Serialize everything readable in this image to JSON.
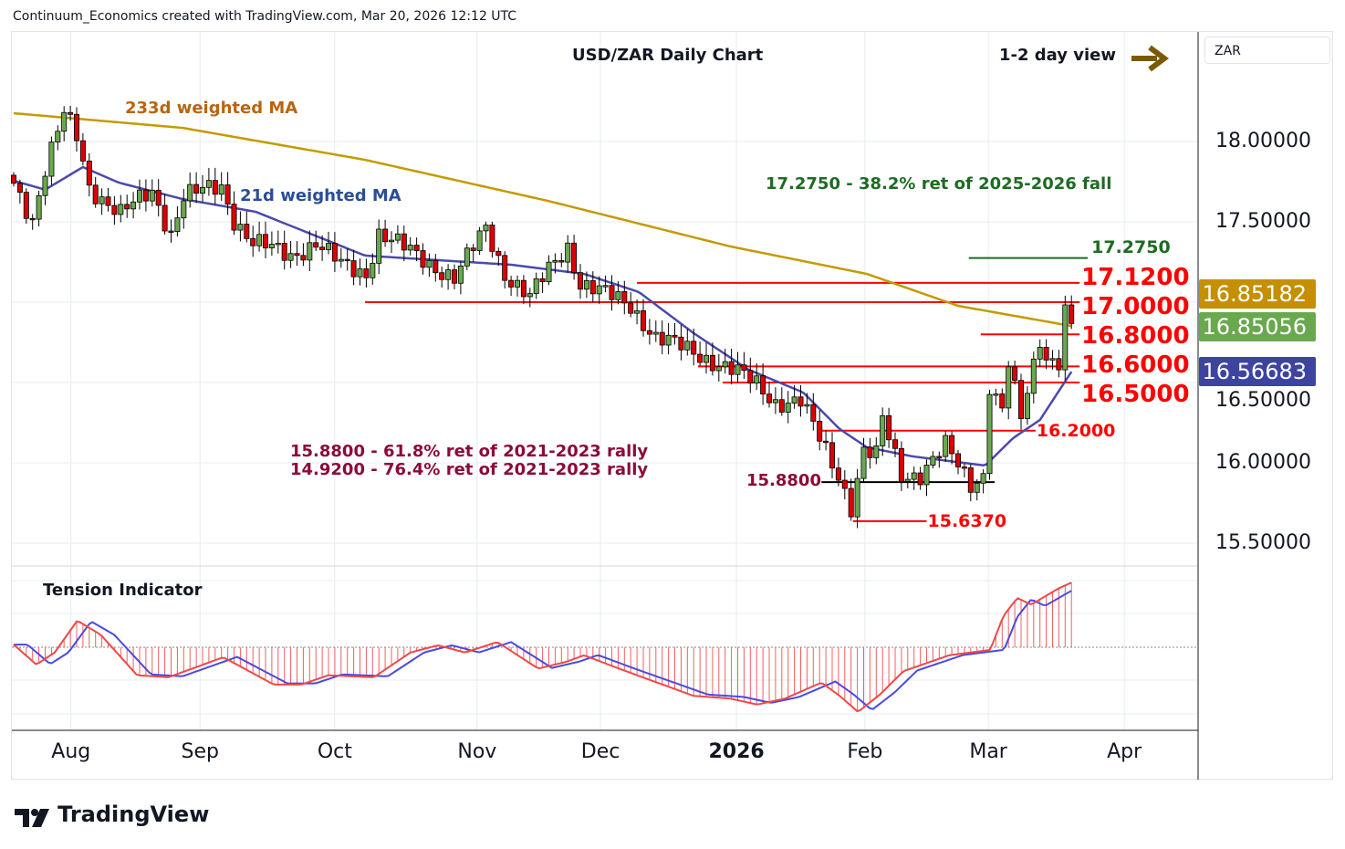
{
  "header": {
    "credit": "Continuum_Economics created with TradingView.com, Mar 20, 2026 12:12 UTC",
    "symbol_box": "ZAR"
  },
  "annotations": {
    "ma233": "233d weighted MA",
    "ma21": "21d weighted MA",
    "view": "1-2 day view",
    "fib382": "17.2750 - 38.2% ret of 2025-2026 fall",
    "fib618": "15.8800 - 61.8% ret of 2021-2023 rally",
    "fib764": "14.9200 - 76.4% ret of 2021-2023 rally",
    "tension": "Tension Indicator"
  },
  "badges": {
    "ma233": {
      "text": "16.85182",
      "color": "#c49000"
    },
    "last": {
      "text": "16.85056",
      "color": "#6aa84f"
    },
    "ma21": {
      "text": "16.56683",
      "color": "#3c44a0"
    }
  },
  "footer": {
    "brand": "TradingView"
  },
  "chart_data": {
    "type": "candlestick",
    "title": "USD/ZAR Daily Chart",
    "days": 169,
    "x_ticks": [
      {
        "label": "Aug",
        "day": 9.1
      },
      {
        "label": "Sep",
        "day": 29.6
      },
      {
        "label": "Oct",
        "day": 51
      },
      {
        "label": "Nov",
        "day": 73.6
      },
      {
        "label": "Dec",
        "day": 93.2
      },
      {
        "label": "2026",
        "day": 114.8,
        "bold": true
      },
      {
        "label": "Feb",
        "day": 135.2
      },
      {
        "label": "Mar",
        "day": 154.8
      },
      {
        "label": "Apr",
        "day": 176.4
      }
    ],
    "y_ticks": [
      {
        "label": "18.00000",
        "value": 18.0
      },
      {
        "label": "17.50000",
        "value": 17.5
      },
      {
        "label": "16.50000",
        "value": 16.5
      },
      {
        "label": "16.00000",
        "value": 16.0
      },
      {
        "label": "15.50000",
        "value": 15.5
      }
    ],
    "close_keypoints": [
      [
        0,
        17.74
      ],
      [
        3,
        17.52
      ],
      [
        5,
        17.83
      ],
      [
        8,
        18.17
      ],
      [
        10,
        18.03
      ],
      [
        12,
        17.72
      ],
      [
        17,
        17.55
      ],
      [
        22,
        17.69
      ],
      [
        25,
        17.43
      ],
      [
        27,
        17.66
      ],
      [
        33,
        17.72
      ],
      [
        35,
        17.52
      ],
      [
        38,
        17.37
      ],
      [
        44,
        17.29
      ],
      [
        48,
        17.37
      ],
      [
        52,
        17.23
      ],
      [
        56,
        17.18
      ],
      [
        58,
        17.43
      ],
      [
        64,
        17.29
      ],
      [
        70,
        17.15
      ],
      [
        75,
        17.46
      ],
      [
        78,
        17.18
      ],
      [
        82,
        17.03
      ],
      [
        85,
        17.2
      ],
      [
        88,
        17.35
      ],
      [
        90,
        17.12
      ],
      [
        98,
        16.98
      ],
      [
        102,
        16.78
      ],
      [
        108,
        16.69
      ],
      [
        114,
        16.58
      ],
      [
        118,
        16.49
      ],
      [
        121,
        16.38
      ],
      [
        125,
        16.38
      ],
      [
        128,
        16.15
      ],
      [
        131,
        15.93
      ],
      [
        133,
        15.73
      ],
      [
        135,
        16.07
      ],
      [
        137,
        16.04
      ],
      [
        138,
        16.27
      ],
      [
        141,
        15.93
      ],
      [
        144,
        15.93
      ],
      [
        148,
        16.1
      ],
      [
        152,
        15.87
      ],
      [
        154,
        15.93
      ],
      [
        155,
        16.49
      ],
      [
        157,
        16.32
      ],
      [
        158,
        16.61
      ],
      [
        160,
        16.27
      ],
      [
        161,
        16.44
      ],
      [
        163,
        16.78
      ],
      [
        164,
        16.66
      ],
      [
        166,
        16.64
      ],
      [
        167,
        16.95
      ],
      [
        167.5,
        16.72
      ],
      [
        168,
        16.85
      ]
    ],
    "ma233_keypoints": [
      [
        0,
        18.176
      ],
      [
        26.8,
        18.085
      ],
      [
        55.8,
        17.886
      ],
      [
        84.8,
        17.631
      ],
      [
        113.8,
        17.347
      ],
      [
        135.5,
        17.176
      ],
      [
        150,
        16.977
      ],
      [
        168,
        16.852
      ]
    ],
    "ma21_keypoints": [
      [
        0,
        17.756
      ],
      [
        5,
        17.7
      ],
      [
        11,
        17.841
      ],
      [
        16.7,
        17.744
      ],
      [
        26.8,
        17.642
      ],
      [
        38.4,
        17.563
      ],
      [
        55.8,
        17.29
      ],
      [
        79,
        17.233
      ],
      [
        90.6,
        17.176
      ],
      [
        99.3,
        17.063
      ],
      [
        108,
        16.807
      ],
      [
        116.7,
        16.58
      ],
      [
        125.4,
        16.438
      ],
      [
        131.2,
        16.21
      ],
      [
        135.5,
        16.097
      ],
      [
        142.8,
        16.04
      ],
      [
        154.3,
        15.983
      ],
      [
        158.7,
        16.153
      ],
      [
        163,
        16.267
      ],
      [
        168,
        16.567
      ]
    ],
    "levels": [
      {
        "label": "17.2750",
        "value": 17.275,
        "from": 151.7,
        "to": 170.6,
        "color": "#1e6b23",
        "style": "sm-green"
      },
      {
        "label": "17.1200",
        "value": 17.12,
        "from": 99,
        "to": 169.3,
        "color": "#ff0000",
        "style": "big"
      },
      {
        "label": "17.0000",
        "value": 17.0,
        "from": 55.8,
        "to": 169.3,
        "color": "#ff0000",
        "style": "big"
      },
      {
        "label": "16.8000",
        "value": 16.8,
        "from": 153.6,
        "to": 169.3,
        "color": "#ff0000",
        "style": "big"
      },
      {
        "label": "16.6000",
        "value": 16.6,
        "from": 108.7,
        "to": 169.3,
        "color": "#ff0000",
        "style": "big"
      },
      {
        "label": "16.5000",
        "value": 16.5,
        "from": 112.6,
        "to": 169.3,
        "color": "#ff0000",
        "style": "big"
      },
      {
        "label": "16.2000",
        "value": 16.2,
        "from": 128.3,
        "to": 162.3,
        "color": "#ff0000",
        "style": "sm"
      },
      {
        "label": "15.8800",
        "value": 15.88,
        "from": 128.3,
        "to": 155.8,
        "color": "#000000",
        "style": "left-maroon"
      },
      {
        "label": "15.6370",
        "value": 15.637,
        "from": 133.3,
        "to": 145,
        "color": "#ff0000",
        "style": "sm"
      }
    ],
    "tension_keypoints": [
      [
        0,
        0.04
      ],
      [
        3.6,
        -0.26
      ],
      [
        6.5,
        -0.08
      ],
      [
        10.1,
        0.4
      ],
      [
        13.8,
        0.19
      ],
      [
        19.6,
        -0.42
      ],
      [
        24.6,
        -0.45
      ],
      [
        33.3,
        -0.15
      ],
      [
        41.3,
        -0.56
      ],
      [
        45.7,
        -0.56
      ],
      [
        50,
        -0.42
      ],
      [
        57.2,
        -0.45
      ],
      [
        63,
        -0.08
      ],
      [
        67.4,
        0.03
      ],
      [
        71.7,
        -0.08
      ],
      [
        76.8,
        0.08
      ],
      [
        83.3,
        -0.32
      ],
      [
        87.7,
        -0.22
      ],
      [
        90.6,
        -0.12
      ],
      [
        96.4,
        -0.33
      ],
      [
        102.2,
        -0.53
      ],
      [
        108,
        -0.73
      ],
      [
        113.8,
        -0.77
      ],
      [
        118.1,
        -0.86
      ],
      [
        122.5,
        -0.77
      ],
      [
        128.3,
        -0.53
      ],
      [
        131.2,
        -0.73
      ],
      [
        134.1,
        -0.97
      ],
      [
        137.7,
        -0.7
      ],
      [
        141.3,
        -0.36
      ],
      [
        148.6,
        -0.12
      ],
      [
        155.1,
        -0.04
      ],
      [
        157.2,
        0.47
      ],
      [
        159.4,
        0.74
      ],
      [
        161.6,
        0.64
      ],
      [
        165.9,
        0.88
      ],
      [
        168,
        0.97
      ]
    ]
  }
}
